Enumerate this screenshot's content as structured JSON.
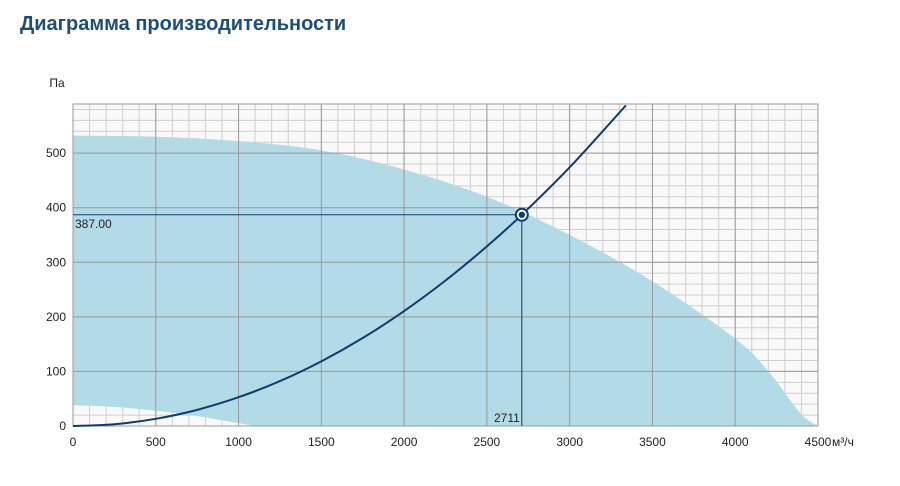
{
  "page": {
    "title": "Диаграмма производительности"
  },
  "colors": {
    "title": "#1b4f7a",
    "area_fill": "#b3dbe7",
    "curve": "#0e3c6e",
    "grid_major": "#999999",
    "grid_minor": "#cfcfcf",
    "plot_bg": "#f9f9f9"
  },
  "chart_data": {
    "type": "line",
    "xlabel": "м³/ч",
    "ylabel": "Па",
    "xlim": [
      0,
      4500
    ],
    "ylim": [
      0,
      590
    ],
    "x_ticks": [
      0,
      500,
      1000,
      1500,
      2000,
      2500,
      3000,
      3500,
      4000,
      4500
    ],
    "y_ticks": [
      0,
      100,
      200,
      300,
      400,
      500
    ],
    "x_minor_step": 100,
    "y_minor_step": 20,
    "grid": true,
    "operating_area": {
      "upper_boundary": [
        [
          0,
          532
        ],
        [
          500,
          530
        ],
        [
          1000,
          522
        ],
        [
          1500,
          505
        ],
        [
          2000,
          470
        ],
        [
          2500,
          420
        ],
        [
          3000,
          350
        ],
        [
          3500,
          265
        ],
        [
          4000,
          160
        ],
        [
          4200,
          100
        ],
        [
          4350,
          40
        ],
        [
          4420,
          15
        ],
        [
          4500,
          0
        ]
      ],
      "lower_boundary": [
        [
          0,
          38
        ],
        [
          250,
          35
        ],
        [
          500,
          28
        ],
        [
          750,
          18
        ],
        [
          1000,
          5
        ],
        [
          1100,
          0
        ]
      ]
    },
    "series": [
      {
        "type": "system_curve",
        "x": [
          0,
          250,
          500,
          750,
          1000,
          1250,
          1500,
          1750,
          2000,
          2250,
          2500,
          2711,
          3000,
          3340
        ],
        "y": [
          0,
          3.3,
          13.2,
          29.6,
          52.7,
          82.3,
          118.5,
          161.3,
          210.6,
          266.6,
          329.1,
          387.0,
          473.9,
          587.5
        ]
      }
    ],
    "operating_point": {
      "x": 2711,
      "y": 387.0,
      "x_label": "2711",
      "y_label": "387.00"
    }
  }
}
